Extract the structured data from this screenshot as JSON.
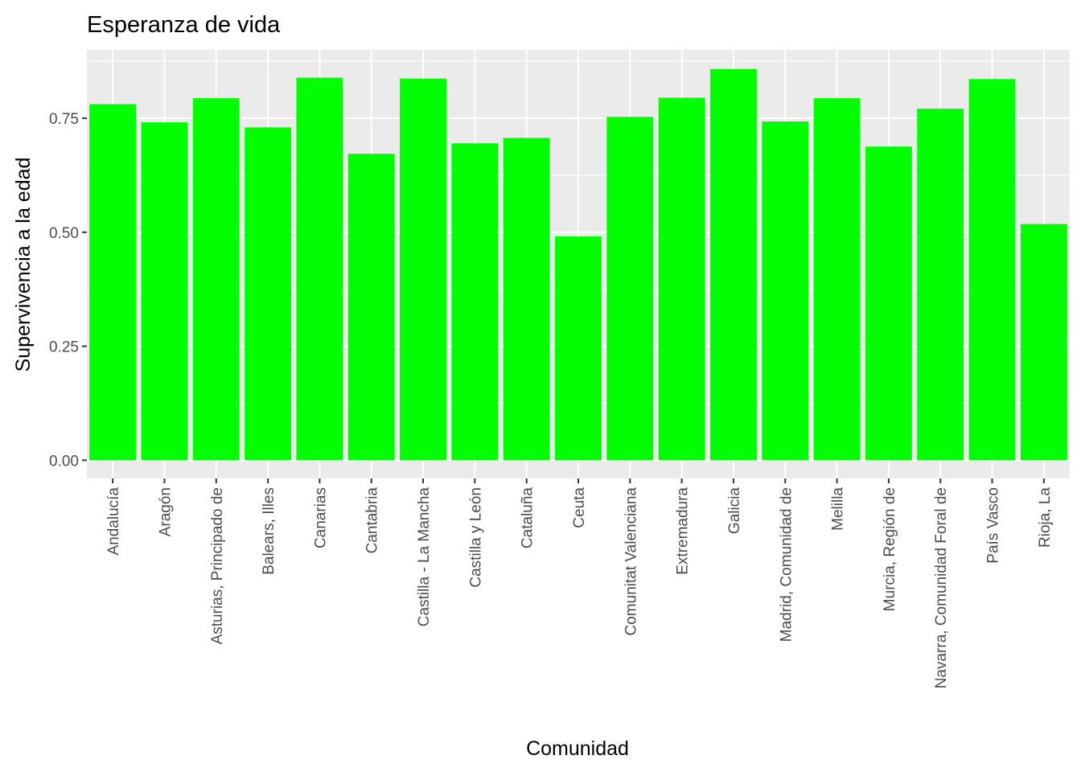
{
  "chart_data": {
    "type": "bar",
    "title": "Esperanza de vida",
    "xlabel": "Comunidad",
    "ylabel": "Supervivencia a la edad",
    "categories": [
      "Andalucía",
      "Aragón",
      "Asturias, Principado de",
      "Balears, Illes",
      "Canarias",
      "Cantabria",
      "Castilla - La Mancha",
      "Castilla y León",
      "Cataluña",
      "Ceuta",
      "Comunitat Valenciana",
      "Extremadura",
      "Galicia",
      "Madrid, Comunidad de",
      "Melilla",
      "Murcia, Región de",
      "Navarra, Comunidad Foral de",
      "País Vasco",
      "Rioja, La"
    ],
    "values": [
      0.781,
      0.741,
      0.794,
      0.73,
      0.839,
      0.672,
      0.837,
      0.695,
      0.707,
      0.491,
      0.753,
      0.795,
      0.858,
      0.743,
      0.794,
      0.688,
      0.771,
      0.836,
      0.518
    ],
    "ylim": [
      -0.04,
      0.9
    ],
    "yticks": [
      0.0,
      0.25,
      0.5,
      0.75
    ],
    "ytick_labels": [
      "0.00",
      "0.25",
      "0.50",
      "0.75"
    ],
    "bar_color": "#00FF00",
    "panel_background": "#EBEBEB",
    "grid": true,
    "legend": "none"
  }
}
